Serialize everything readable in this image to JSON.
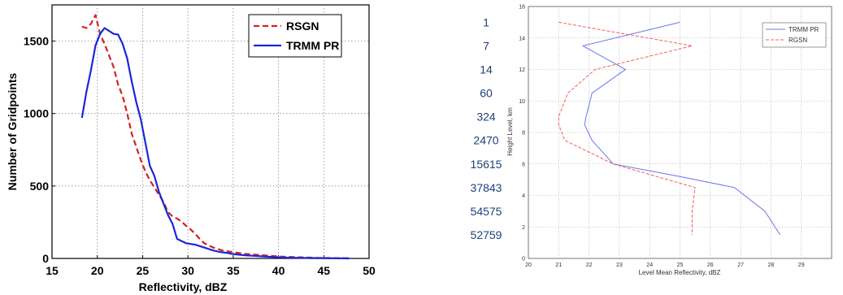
{
  "chart_data": [
    {
      "type": "line",
      "title": "",
      "xlabel": "Reflectivity, dBZ",
      "ylabel": "Number of Gridpoints",
      "xlim": [
        15,
        50
      ],
      "ylim": [
        0,
        1750
      ],
      "xticks": [
        "15",
        "20",
        "25",
        "30",
        "35",
        "40",
        "45",
        "50"
      ],
      "yticks": [
        "0",
        "500",
        "1000",
        "1500"
      ],
      "grid": true,
      "legend": "top-right",
      "series": [
        {
          "name": "RSGN",
          "color": "#d62020",
          "dash": "dashed",
          "points": [
            [
              18.3,
              1600
            ],
            [
              18.8,
              1590
            ],
            [
              19.3,
              1620
            ],
            [
              19.8,
              1680
            ],
            [
              20.3,
              1550
            ],
            [
              20.8,
              1480
            ],
            [
              21.3,
              1400
            ],
            [
              21.8,
              1320
            ],
            [
              22.3,
              1200
            ],
            [
              22.8,
              1120
            ],
            [
              23.3,
              1000
            ],
            [
              23.8,
              860
            ],
            [
              24.3,
              770
            ],
            [
              24.8,
              680
            ],
            [
              25.3,
              600
            ],
            [
              25.8,
              540
            ],
            [
              26.3,
              490
            ],
            [
              26.8,
              440
            ],
            [
              27.3,
              390
            ],
            [
              27.8,
              320
            ],
            [
              28.3,
              290
            ],
            [
              28.8,
              275
            ],
            [
              29.3,
              255
            ],
            [
              29.8,
              225
            ],
            [
              30.3,
              200
            ],
            [
              30.8,
              170
            ],
            [
              31.3,
              135
            ],
            [
              31.8,
              105
            ],
            [
              32.3,
              90
            ],
            [
              32.8,
              75
            ],
            [
              33.3,
              65
            ],
            [
              33.8,
              55
            ],
            [
              34.3,
              50
            ],
            [
              34.8,
              45
            ],
            [
              35.3,
              40
            ],
            [
              36.3,
              32
            ],
            [
              37.3,
              27
            ],
            [
              38.3,
              22
            ],
            [
              39.3,
              17
            ],
            [
              40.3,
              13
            ],
            [
              42.3,
              8
            ],
            [
              44.3,
              4
            ],
            [
              46.3,
              2
            ],
            [
              47.8,
              1
            ]
          ]
        },
        {
          "name": "TRMM PR",
          "color": "#1a26d9",
          "dash": "solid",
          "points": [
            [
              18.3,
              970
            ],
            [
              18.8,
              1150
            ],
            [
              19.3,
              1300
            ],
            [
              19.8,
              1470
            ],
            [
              20.3,
              1550
            ],
            [
              20.8,
              1590
            ],
            [
              21.3,
              1570
            ],
            [
              21.8,
              1550
            ],
            [
              22.3,
              1545
            ],
            [
              22.8,
              1480
            ],
            [
              23.3,
              1380
            ],
            [
              23.8,
              1220
            ],
            [
              24.3,
              1080
            ],
            [
              24.8,
              960
            ],
            [
              25.3,
              800
            ],
            [
              25.8,
              640
            ],
            [
              26.3,
              570
            ],
            [
              26.8,
              460
            ],
            [
              27.3,
              380
            ],
            [
              27.8,
              300
            ],
            [
              28.3,
              240
            ],
            [
              28.8,
              135
            ],
            [
              29.3,
              120
            ],
            [
              29.8,
              105
            ],
            [
              30.3,
              100
            ],
            [
              30.8,
              95
            ],
            [
              31.3,
              85
            ],
            [
              31.8,
              75
            ],
            [
              32.3,
              65
            ],
            [
              32.8,
              55
            ],
            [
              33.3,
              47
            ],
            [
              33.8,
              42
            ],
            [
              34.3,
              38
            ],
            [
              34.8,
              32
            ],
            [
              35.3,
              28
            ],
            [
              36.3,
              22
            ],
            [
              37.3,
              18
            ],
            [
              38.3,
              14
            ],
            [
              39.3,
              10
            ],
            [
              40.3,
              7
            ],
            [
              42.3,
              4
            ],
            [
              44.3,
              2
            ],
            [
              46.3,
              1
            ],
            [
              47.8,
              0
            ]
          ]
        }
      ]
    },
    {
      "type": "line",
      "title": "",
      "xlabel": "Level Mean Reflectivity, dBZ",
      "ylabel": "Height Level, km",
      "xlim": [
        20,
        30
      ],
      "ylim": [
        0,
        16
      ],
      "xticks": [
        "20",
        "21",
        "22",
        "23",
        "24",
        "25",
        "26",
        "27",
        "28",
        "29"
      ],
      "yticks": [
        "0",
        "2",
        "4",
        "6",
        "8",
        "10",
        "12",
        "14",
        "16"
      ],
      "grid": true,
      "legend": "top-right",
      "series": [
        {
          "name": "TRMM PR",
          "color": "#6a74f0",
          "dash": "solid",
          "points": [
            [
              25.0,
              15.0
            ],
            [
              21.8,
              13.5
            ],
            [
              23.2,
              12.0
            ],
            [
              22.1,
              10.5
            ],
            [
              21.9,
              9.0
            ],
            [
              21.85,
              8.5
            ],
            [
              22.1,
              7.5
            ],
            [
              22.8,
              6.0
            ],
            [
              25.0,
              5.2
            ],
            [
              26.8,
              4.5
            ],
            [
              27.8,
              3.0
            ],
            [
              28.3,
              1.5
            ]
          ]
        },
        {
          "name": "RGSN",
          "color": "#f06060",
          "dash": "dashed",
          "points": [
            [
              21.0,
              15.0
            ],
            [
              25.4,
              13.5
            ],
            [
              22.2,
              12.0
            ],
            [
              21.3,
              10.5
            ],
            [
              21.0,
              9.0
            ],
            [
              21.0,
              8.5
            ],
            [
              21.2,
              7.5
            ],
            [
              22.8,
              6.0
            ],
            [
              25.5,
              4.5
            ],
            [
              25.4,
              3.0
            ],
            [
              25.4,
              1.5
            ]
          ]
        }
      ],
      "annotations": [
        {
          "label": "1",
          "y": 15.0
        },
        {
          "label": "7",
          "y": 13.5
        },
        {
          "label": "14",
          "y": 12.0
        },
        {
          "label": "60",
          "y": 10.5
        },
        {
          "label": "324",
          "y": 9.0
        },
        {
          "label": "2470",
          "y": 7.5
        },
        {
          "label": "15615",
          "y": 6.0
        },
        {
          "label": "37843",
          "y": 4.5
        },
        {
          "label": "54575",
          "y": 3.0
        },
        {
          "label": "52759",
          "y": 1.5
        }
      ]
    }
  ]
}
